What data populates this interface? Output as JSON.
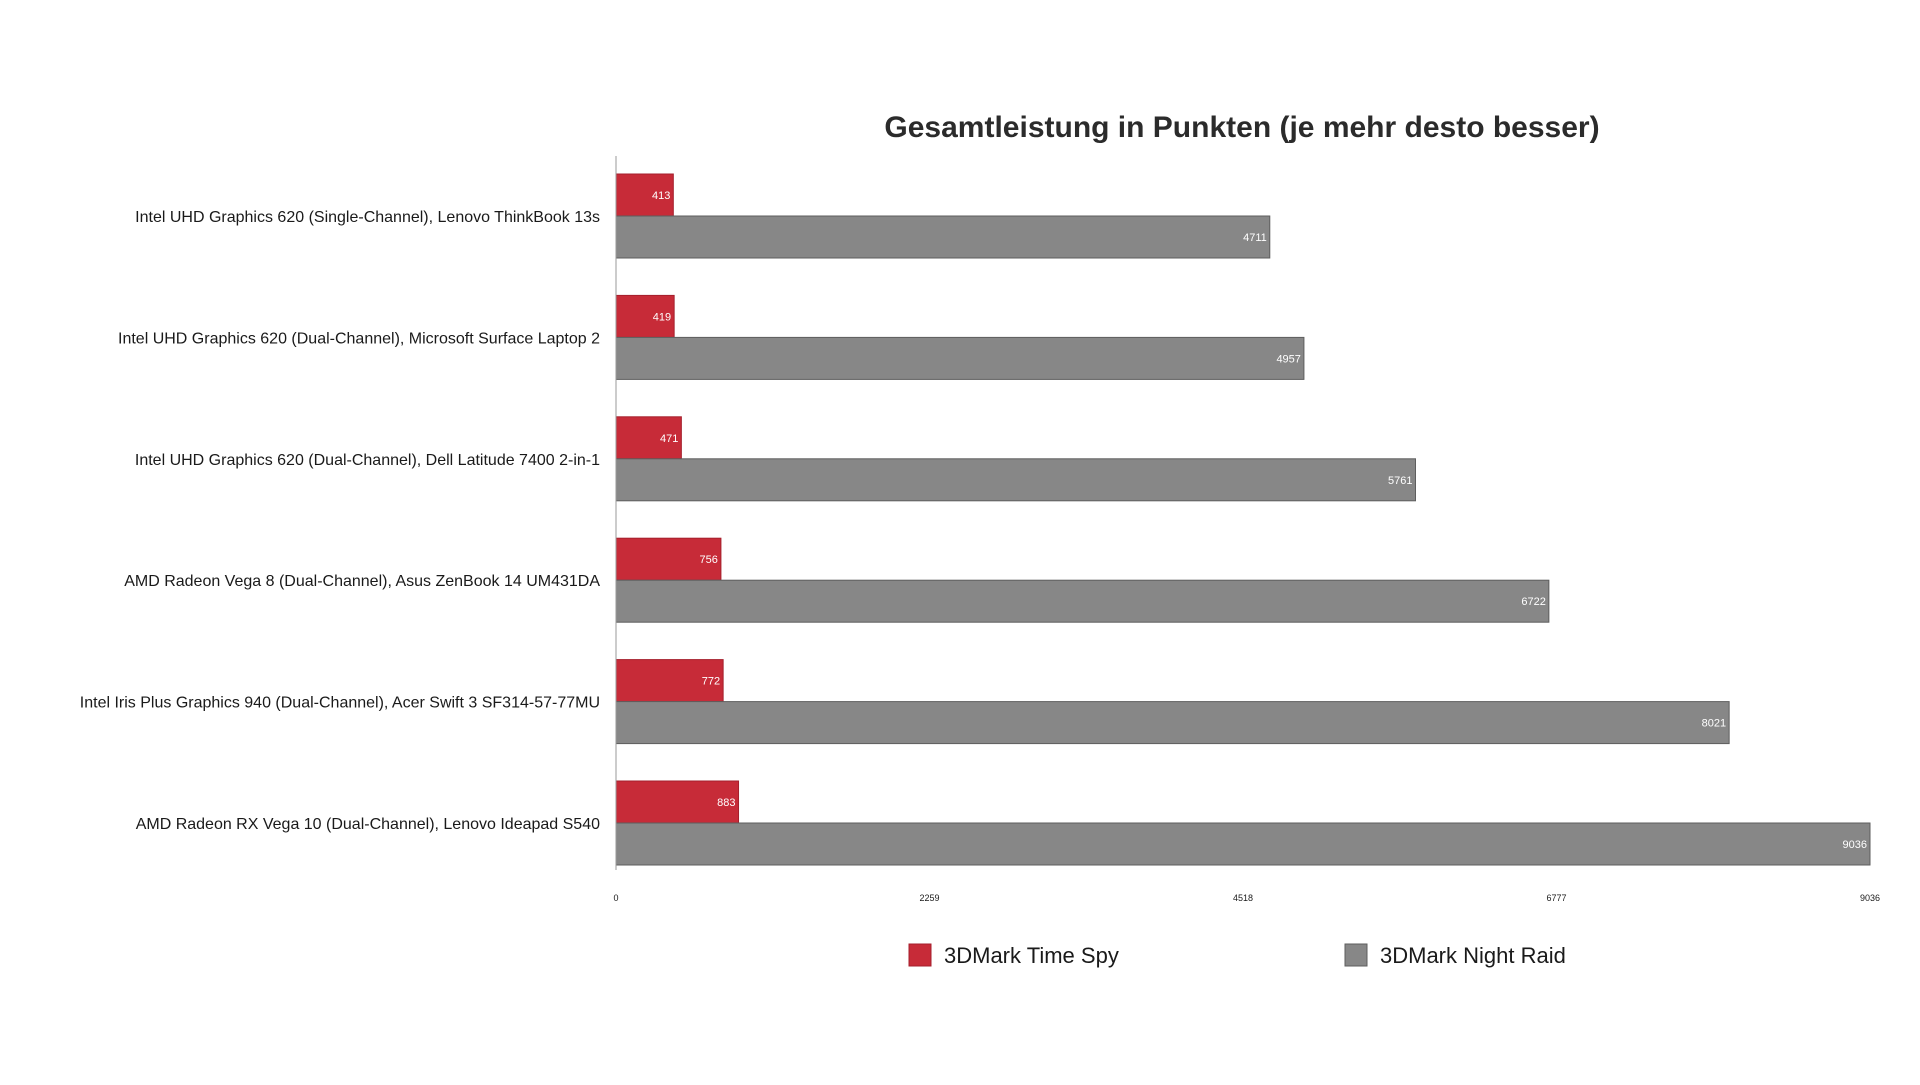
{
  "chart_data": {
    "type": "bar",
    "orientation": "horizontal",
    "title": "Gesamtleistung in Punkten (je mehr desto besser)",
    "xlabel": "",
    "ylabel": "",
    "xlim": [
      0,
      9036
    ],
    "x_ticks": [
      "0",
      "2259",
      "4518",
      "6777",
      "9036"
    ],
    "grid": false,
    "legend_position": "bottom",
    "categories": [
      "Intel UHD Graphics 620 (Single-Channel), Lenovo ThinkBook 13s",
      "Intel UHD Graphics 620 (Dual-Channel), Microsoft Surface Laptop 2",
      "Intel UHD Graphics 620 (Dual-Channel), Dell Latitude 7400 2-in-1",
      "AMD Radeon Vega 8 (Dual-Channel),  Asus ZenBook 14 UM431DA",
      "Intel Iris Plus Graphics 940 (Dual-Channel), Acer Swift 3 SF314-57-77MU",
      "AMD Radeon RX Vega 10 (Dual-Channel), Lenovo Ideapad S540"
    ],
    "series": [
      {
        "name": "3DMark Time Spy",
        "color": "#c72b38",
        "values": [
          413,
          419,
          471,
          756,
          772,
          883
        ]
      },
      {
        "name": "3DMark Night Raid",
        "color": "#878787",
        "values": [
          4711,
          4957,
          5761,
          6722,
          8021,
          9036
        ]
      }
    ]
  }
}
